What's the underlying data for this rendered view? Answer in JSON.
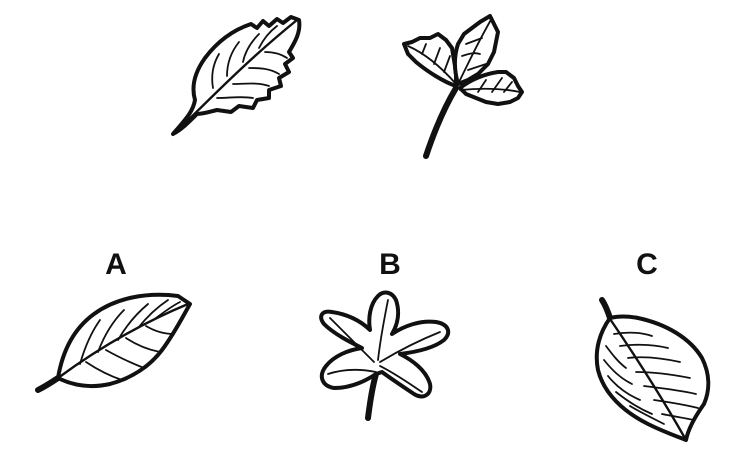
{
  "puzzle": {
    "example_leaves": [
      {
        "icon": "serrated-leaf-icon"
      },
      {
        "icon": "three-leaflet-sprig-icon"
      }
    ],
    "options": [
      {
        "label": "A",
        "icon": "veined-leaf-icon"
      },
      {
        "label": "B",
        "icon": "lobed-leaf-icon"
      },
      {
        "label": "C",
        "icon": "hatched-leaf-icon"
      }
    ]
  }
}
